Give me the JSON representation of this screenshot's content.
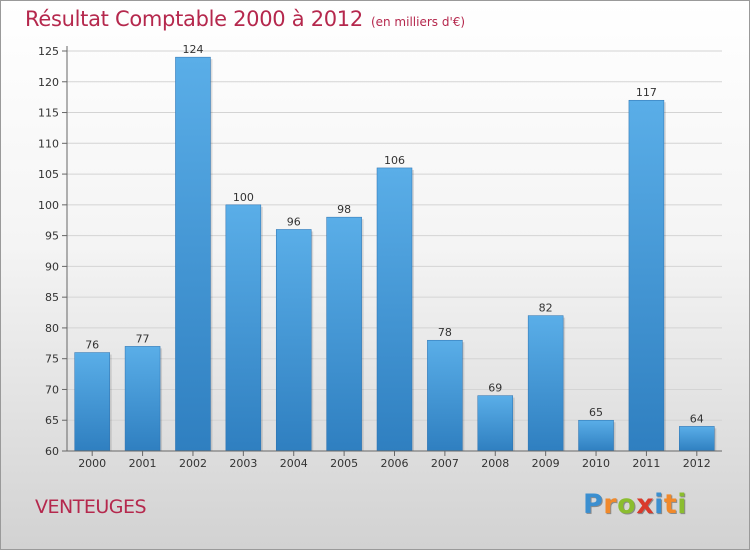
{
  "header": {
    "title": "Résultat Comptable 2000 à 2012",
    "unit": "(en milliers d'€)"
  },
  "footer": {
    "commune": "VENTEUGES",
    "logo": {
      "text": "Proxiti",
      "letters": [
        "P",
        "r",
        "o",
        "x",
        "i",
        "t",
        "i"
      ],
      "colors": [
        "#3b8fd0",
        "#f0892b",
        "#8bbd2f",
        "#d93a2b",
        "#3b8fd0",
        "#f0892b",
        "#8bbd2f"
      ]
    }
  },
  "colors": {
    "bar_top": "#5aaee8",
    "bar_bottom": "#2f7fc0",
    "title": "#b5284d"
  },
  "chart_data": {
    "type": "bar",
    "title": "Résultat Comptable 2000 à 2012",
    "ylabel": "en milliers d'€",
    "categories": [
      "2000",
      "2001",
      "2002",
      "2003",
      "2004",
      "2005",
      "2006",
      "2007",
      "2008",
      "2009",
      "2010",
      "2011",
      "2012"
    ],
    "values": [
      76,
      77,
      124,
      100,
      96,
      98,
      106,
      78,
      69,
      82,
      65,
      117,
      64
    ],
    "ylim": [
      60,
      125
    ],
    "yticks": [
      60,
      65,
      70,
      75,
      80,
      85,
      90,
      95,
      100,
      105,
      110,
      115,
      120,
      125
    ],
    "grid": true
  }
}
